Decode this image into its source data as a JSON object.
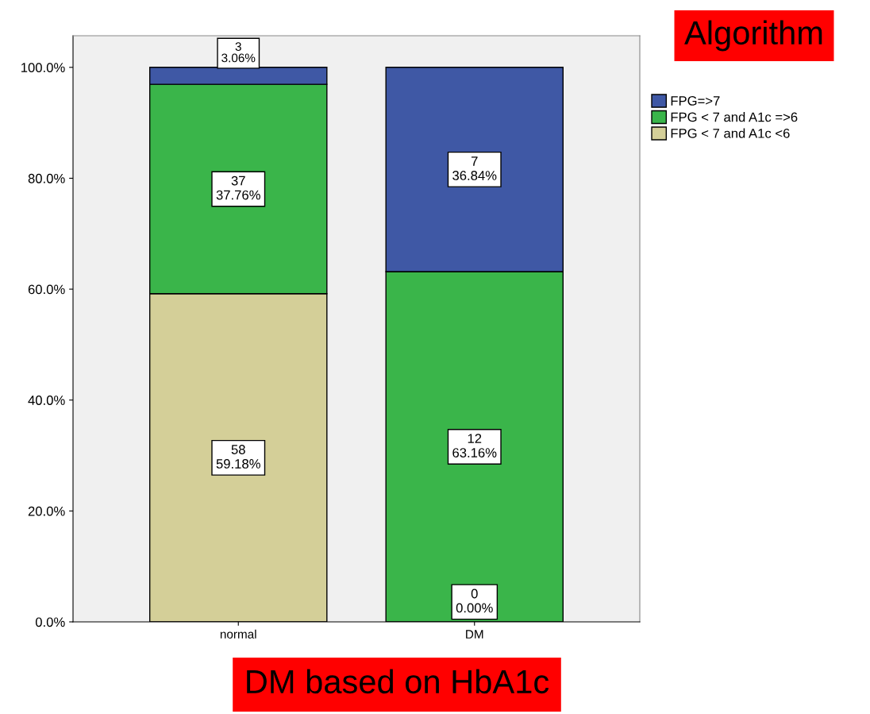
{
  "chart_data": {
    "type": "bar",
    "stacked": true,
    "xlabel": "DM based on HbA1c",
    "legend_title": "Algorithm",
    "categories": [
      "normal",
      "DM"
    ],
    "series": [
      {
        "name": "FPG < 7 and A1c <6",
        "color": "#d4cf98",
        "values": [
          59.18,
          0
        ],
        "value_labels": [
          "58\n59.18%",
          null
        ]
      },
      {
        "name": "FPG < 7 and A1c =>6",
        "color": "#3ab54a",
        "values": [
          37.76,
          63.16
        ],
        "value_labels": [
          "37\n37.76%",
          "12\n63.16%"
        ]
      },
      {
        "name": "FPG=>7",
        "color": "#3f58a5",
        "values": [
          3.06,
          36.84
        ],
        "value_labels": [
          "3\n3.06%",
          "7\n36.84%"
        ]
      }
    ],
    "annotations": [
      {
        "text": "0\n0.00%",
        "x": "DM",
        "y": 0
      }
    ],
    "ylim": [
      0,
      105.7
    ],
    "yticks": [
      {
        "value": 0,
        "label": "0.0%"
      },
      {
        "value": 20,
        "label": "20.0%"
      },
      {
        "value": 40,
        "label": "40.0%"
      },
      {
        "value": 60,
        "label": "60.0%"
      },
      {
        "value": 80,
        "label": "80.0%"
      },
      {
        "value": 100,
        "label": "100.0%"
      }
    ],
    "grid": false,
    "legend": "top right"
  }
}
